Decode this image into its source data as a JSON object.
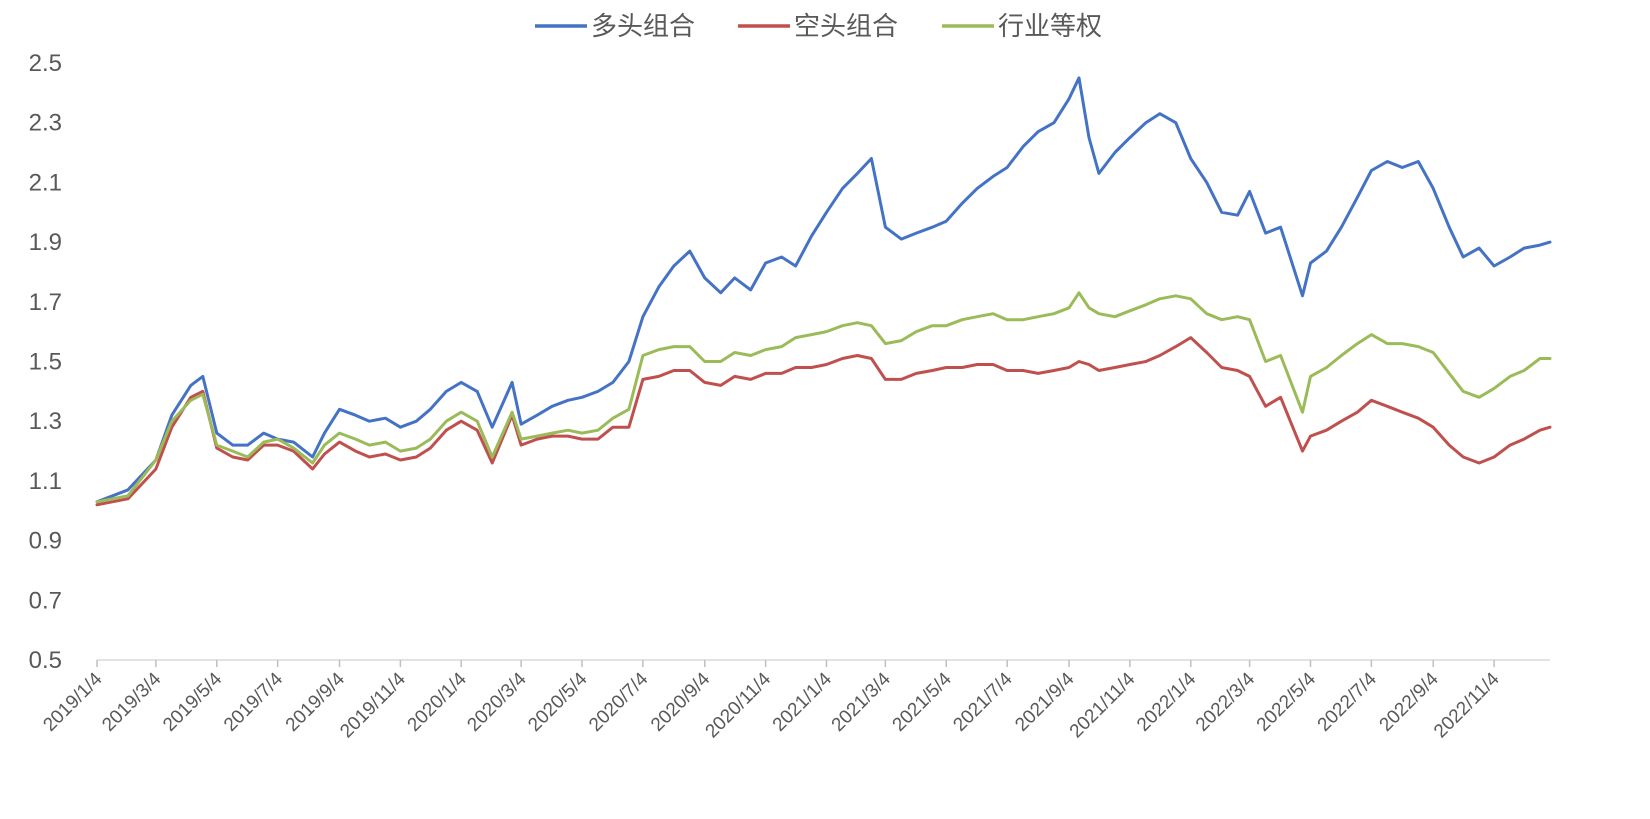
{
  "chart_data": {
    "type": "line",
    "title": "",
    "xlabel": "",
    "ylabel": "",
    "ylim": [
      0.5,
      2.5
    ],
    "yticks": [
      "0.5",
      "0.7",
      "0.9",
      "1.1",
      "1.3",
      "1.5",
      "1.7",
      "1.9",
      "2.1",
      "2.3",
      "2.5"
    ],
    "xticks": [
      "2019/1/4",
      "2019/3/4",
      "2019/5/4",
      "2019/7/4",
      "2019/9/4",
      "2019/11/4",
      "2020/1/4",
      "2020/3/4",
      "2020/5/4",
      "2020/7/4",
      "2020/9/4",
      "2020/11/4",
      "2021/1/4",
      "2021/3/4",
      "2021/5/4",
      "2021/7/4",
      "2021/9/4",
      "2021/11/4",
      "2022/1/4",
      "2022/3/4",
      "2022/5/4",
      "2022/7/4",
      "2022/9/4",
      "2022/11/4"
    ],
    "x_range": [
      "2019/1/4",
      "2022/12/30"
    ],
    "grid": false,
    "legend_position": "top-center",
    "x": [
      "2019/1/4",
      "2019/2/4",
      "2019/3/4",
      "2019/3/20",
      "2019/4/8",
      "2019/4/20",
      "2019/5/4",
      "2019/5/20",
      "2019/6/4",
      "2019/6/20",
      "2019/7/4",
      "2019/7/20",
      "2019/8/8",
      "2019/8/20",
      "2019/9/4",
      "2019/9/20",
      "2019/10/4",
      "2019/10/20",
      "2019/11/4",
      "2019/11/20",
      "2019/12/4",
      "2019/12/20",
      "2020/1/4",
      "2020/1/20",
      "2020/2/4",
      "2020/2/24",
      "2020/3/4",
      "2020/3/20",
      "2020/4/4",
      "2020/4/20",
      "2020/5/4",
      "2020/5/20",
      "2020/6/4",
      "2020/6/20",
      "2020/7/4",
      "2020/7/20",
      "2020/8/4",
      "2020/8/20",
      "2020/9/4",
      "2020/9/20",
      "2020/10/4",
      "2020/10/20",
      "2020/11/4",
      "2020/11/20",
      "2020/12/4",
      "2020/12/20",
      "2021/1/4",
      "2021/1/20",
      "2021/2/4",
      "2021/2/18",
      "2021/3/4",
      "2021/3/20",
      "2021/4/4",
      "2021/4/20",
      "2021/5/4",
      "2021/5/20",
      "2021/6/4",
      "2021/6/20",
      "2021/7/4",
      "2021/7/20",
      "2021/8/4",
      "2021/8/20",
      "2021/9/4",
      "2021/9/14",
      "2021/9/24",
      "2021/10/4",
      "2021/10/20",
      "2021/11/4",
      "2021/11/20",
      "2021/12/4",
      "2021/12/20",
      "2022/1/4",
      "2022/1/20",
      "2022/2/4",
      "2022/2/20",
      "2022/3/4",
      "2022/3/20",
      "2022/4/4",
      "2022/4/26",
      "2022/5/4",
      "2022/5/20",
      "2022/6/4",
      "2022/6/20",
      "2022/7/4",
      "2022/7/20",
      "2022/8/4",
      "2022/8/20",
      "2022/9/4",
      "2022/9/20",
      "2022/10/4",
      "2022/10/20",
      "2022/11/4",
      "2022/11/20",
      "2022/12/4",
      "2022/12/20",
      "2022/12/30"
    ],
    "series": [
      {
        "name": "多头组合",
        "color": "#4472C4",
        "values": [
          1.03,
          1.07,
          1.17,
          1.32,
          1.42,
          1.45,
          1.26,
          1.22,
          1.22,
          1.26,
          1.24,
          1.23,
          1.18,
          1.26,
          1.34,
          1.32,
          1.3,
          1.31,
          1.28,
          1.3,
          1.34,
          1.4,
          1.43,
          1.4,
          1.28,
          1.43,
          1.29,
          1.32,
          1.35,
          1.37,
          1.38,
          1.4,
          1.43,
          1.5,
          1.65,
          1.75,
          1.82,
          1.87,
          1.78,
          1.73,
          1.78,
          1.74,
          1.83,
          1.85,
          1.82,
          1.92,
          2.0,
          2.08,
          2.13,
          2.18,
          1.95,
          1.91,
          1.93,
          1.95,
          1.97,
          2.03,
          2.08,
          2.12,
          2.15,
          2.22,
          2.27,
          2.3,
          2.38,
          2.45,
          2.25,
          2.13,
          2.2,
          2.25,
          2.3,
          2.33,
          2.3,
          2.18,
          2.1,
          2.0,
          1.99,
          2.07,
          1.93,
          1.95,
          1.72,
          1.83,
          1.87,
          1.95,
          2.05,
          2.14,
          2.17,
          2.15,
          2.17,
          2.08,
          1.95,
          1.85,
          1.88,
          1.82,
          1.85,
          1.88,
          1.89,
          1.9
        ]
      },
      {
        "name": "空头组合",
        "color": "#C0504D",
        "values": [
          1.02,
          1.04,
          1.14,
          1.28,
          1.38,
          1.4,
          1.21,
          1.18,
          1.17,
          1.22,
          1.22,
          1.2,
          1.14,
          1.19,
          1.23,
          1.2,
          1.18,
          1.19,
          1.17,
          1.18,
          1.21,
          1.27,
          1.3,
          1.27,
          1.16,
          1.32,
          1.22,
          1.24,
          1.25,
          1.25,
          1.24,
          1.24,
          1.28,
          1.28,
          1.44,
          1.45,
          1.47,
          1.47,
          1.43,
          1.42,
          1.45,
          1.44,
          1.46,
          1.46,
          1.48,
          1.48,
          1.49,
          1.51,
          1.52,
          1.51,
          1.44,
          1.44,
          1.46,
          1.47,
          1.48,
          1.48,
          1.49,
          1.49,
          1.47,
          1.47,
          1.46,
          1.47,
          1.48,
          1.5,
          1.49,
          1.47,
          1.48,
          1.49,
          1.5,
          1.52,
          1.55,
          1.58,
          1.53,
          1.48,
          1.47,
          1.45,
          1.35,
          1.38,
          1.2,
          1.25,
          1.27,
          1.3,
          1.33,
          1.37,
          1.35,
          1.33,
          1.31,
          1.28,
          1.22,
          1.18,
          1.16,
          1.18,
          1.22,
          1.24,
          1.27,
          1.28
        ]
      },
      {
        "name": "行业等权",
        "color": "#9BBB59",
        "values": [
          1.03,
          1.05,
          1.17,
          1.3,
          1.37,
          1.39,
          1.22,
          1.2,
          1.18,
          1.23,
          1.24,
          1.21,
          1.16,
          1.22,
          1.26,
          1.24,
          1.22,
          1.23,
          1.2,
          1.21,
          1.24,
          1.3,
          1.33,
          1.3,
          1.18,
          1.33,
          1.24,
          1.25,
          1.26,
          1.27,
          1.26,
          1.27,
          1.31,
          1.34,
          1.52,
          1.54,
          1.55,
          1.55,
          1.5,
          1.5,
          1.53,
          1.52,
          1.54,
          1.55,
          1.58,
          1.59,
          1.6,
          1.62,
          1.63,
          1.62,
          1.56,
          1.57,
          1.6,
          1.62,
          1.62,
          1.64,
          1.65,
          1.66,
          1.64,
          1.64,
          1.65,
          1.66,
          1.68,
          1.73,
          1.68,
          1.66,
          1.65,
          1.67,
          1.69,
          1.71,
          1.72,
          1.71,
          1.66,
          1.64,
          1.65,
          1.64,
          1.5,
          1.52,
          1.33,
          1.45,
          1.48,
          1.52,
          1.56,
          1.59,
          1.56,
          1.56,
          1.55,
          1.53,
          1.46,
          1.4,
          1.38,
          1.41,
          1.45,
          1.47,
          1.51,
          1.51
        ]
      }
    ]
  }
}
